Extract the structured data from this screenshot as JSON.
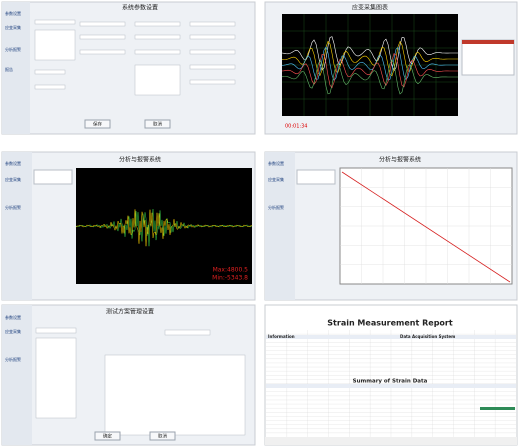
{
  "panels": [
    {
      "title": "系统参数设置",
      "sidebar": [
        "参数设置",
        "应变采集",
        "分析报警",
        "报告"
      ],
      "buttons": [
        "保存",
        "取消"
      ]
    },
    {
      "title": "应变采集图表",
      "status": "00:01:34"
    },
    {
      "title": "分析与报警系统",
      "sidebar": [
        "参数设置",
        "应变采集",
        "分析报警"
      ],
      "annotations": [
        "Max:4800.5",
        "Min:-5343.8"
      ]
    },
    {
      "title": "分析与报警系统",
      "sidebar": [
        "参数设置",
        "应变采集",
        "分析报警"
      ]
    },
    {
      "title": "测试方案管理设置",
      "sidebar": [
        "参数设置",
        "应变采集",
        "分析报警"
      ],
      "buttons": [
        "确定",
        "取消"
      ]
    },
    {
      "title": "Strain Measurement Report",
      "sections": [
        "Information",
        "Data Acquisition System",
        "Summary of Strain Data"
      ]
    }
  ]
}
